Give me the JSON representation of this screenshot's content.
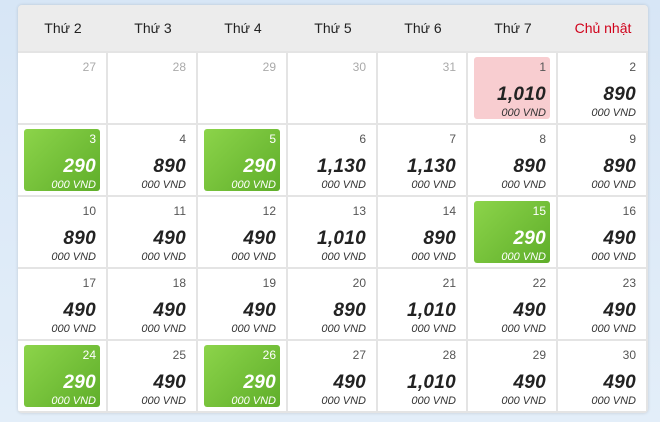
{
  "weekdays": [
    "Thứ 2",
    "Thứ 3",
    "Thứ 4",
    "Thứ 5",
    "Thứ 6",
    "Thứ 7",
    "Chủ nhật"
  ],
  "currency": "000 VND",
  "colors": {
    "cheap": "#6cbf32",
    "selected": "#f8cdd0",
    "sunday": "#d0021b"
  },
  "days": [
    {
      "day": "27",
      "other": true
    },
    {
      "day": "28",
      "other": true
    },
    {
      "day": "29",
      "other": true
    },
    {
      "day": "30",
      "other": true
    },
    {
      "day": "31",
      "other": true
    },
    {
      "day": "1",
      "price": "1,010",
      "state": "selected"
    },
    {
      "day": "2",
      "price": "890"
    },
    {
      "day": "3",
      "price": "290",
      "state": "cheap"
    },
    {
      "day": "4",
      "price": "890"
    },
    {
      "day": "5",
      "price": "290",
      "state": "cheap"
    },
    {
      "day": "6",
      "price": "1,130"
    },
    {
      "day": "7",
      "price": "1,130"
    },
    {
      "day": "8",
      "price": "890"
    },
    {
      "day": "9",
      "price": "890"
    },
    {
      "day": "10",
      "price": "890"
    },
    {
      "day": "11",
      "price": "490"
    },
    {
      "day": "12",
      "price": "490"
    },
    {
      "day": "13",
      "price": "1,010"
    },
    {
      "day": "14",
      "price": "890"
    },
    {
      "day": "15",
      "price": "290",
      "state": "cheap"
    },
    {
      "day": "16",
      "price": "490"
    },
    {
      "day": "17",
      "price": "490"
    },
    {
      "day": "18",
      "price": "490"
    },
    {
      "day": "19",
      "price": "490"
    },
    {
      "day": "20",
      "price": "890"
    },
    {
      "day": "21",
      "price": "1,010"
    },
    {
      "day": "22",
      "price": "490"
    },
    {
      "day": "23",
      "price": "490"
    },
    {
      "day": "24",
      "price": "290",
      "state": "cheap"
    },
    {
      "day": "25",
      "price": "490"
    },
    {
      "day": "26",
      "price": "290",
      "state": "cheap"
    },
    {
      "day": "27",
      "price": "490"
    },
    {
      "day": "28",
      "price": "1,010"
    },
    {
      "day": "29",
      "price": "490"
    },
    {
      "day": "30",
      "price": "490"
    }
  ]
}
